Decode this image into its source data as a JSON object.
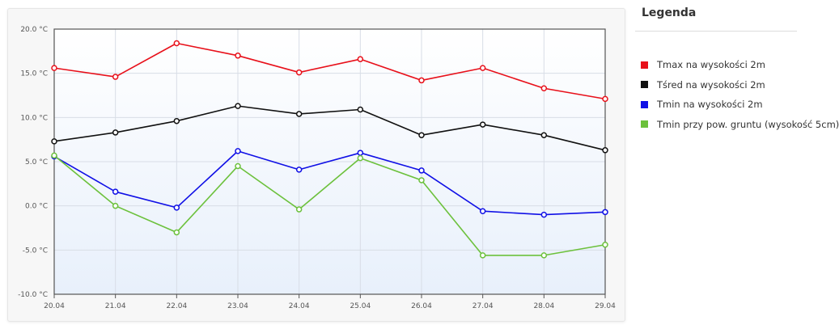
{
  "legend": {
    "title": "Legenda",
    "items": [
      {
        "label": "Tmax na wysokości 2m",
        "color": "#e8101a"
      },
      {
        "label": "Tśred na wysokości 2m",
        "color": "#111111"
      },
      {
        "label": "Tmin na wysokości 2m",
        "color": "#1010e6"
      },
      {
        "label": "Tmin przy pow. gruntu (wysokość 5cm)",
        "color": "#6cc13c"
      }
    ]
  },
  "chart_data": {
    "type": "line",
    "title": "",
    "xlabel": "",
    "ylabel": "",
    "categories": [
      "20.04",
      "21.04",
      "22.04",
      "23.04",
      "24.04",
      "25.04",
      "26.04",
      "27.04",
      "28.04",
      "29.04"
    ],
    "ylim": [
      -10,
      20
    ],
    "yticks": [
      -10,
      -5,
      0,
      5,
      10,
      15,
      20
    ],
    "ytick_labels": [
      "-10.0 °C",
      "-5.0 °C",
      "0.0 °C",
      "5.0 °C",
      "10.0 °C",
      "15.0 °C",
      "20.0 °C"
    ],
    "grid": true,
    "legend_position": "right",
    "series": [
      {
        "name": "Tmax na wysokości 2m",
        "color": "#e8101a",
        "values": [
          15.6,
          14.6,
          18.4,
          17.0,
          15.1,
          16.6,
          14.2,
          15.6,
          13.3,
          12.1
        ]
      },
      {
        "name": "Tśred na wysokości 2m",
        "color": "#111111",
        "values": [
          7.3,
          8.3,
          9.6,
          11.3,
          10.4,
          10.9,
          8.0,
          9.2,
          8.0,
          6.3
        ]
      },
      {
        "name": "Tmin na wysokości 2m",
        "color": "#1010e6",
        "values": [
          5.6,
          1.6,
          -0.2,
          6.2,
          4.1,
          6.0,
          4.0,
          -0.6,
          -1.0,
          -0.7
        ]
      },
      {
        "name": "Tmin przy pow. gruntu (wysokość 5cm)",
        "color": "#6cc13c",
        "values": [
          5.7,
          0.0,
          -3.0,
          4.5,
          -0.4,
          5.4,
          2.9,
          -5.6,
          -5.6,
          -4.4
        ]
      }
    ]
  }
}
